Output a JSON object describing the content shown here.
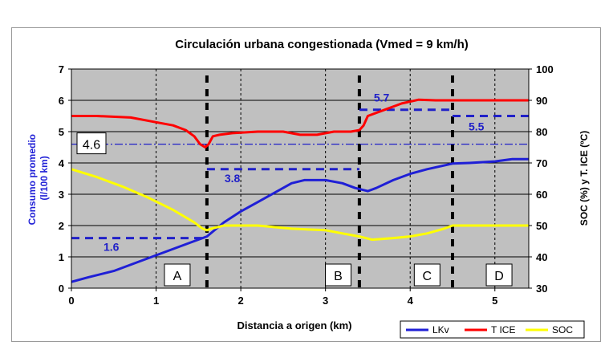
{
  "chart_data": {
    "type": "line",
    "title": "Circulación urbana congestionada (Vmed = 9 km/h)",
    "xlabel": "Distancia a origen (km)",
    "ylabel_lines": [
      "Consumo promedio",
      "(l/100 km)"
    ],
    "y2label": "SOC (%) y T. ICE (ºC)",
    "xlim": [
      0,
      5.4
    ],
    "ylim": [
      0,
      7
    ],
    "y2lim": [
      30,
      100
    ],
    "xticks": [
      0,
      1,
      2,
      3,
      4,
      5
    ],
    "yticks": [
      0,
      1,
      2,
      3,
      4,
      5,
      6,
      7
    ],
    "y2ticks": [
      30,
      40,
      50,
      60,
      70,
      80,
      90,
      100
    ],
    "grid": true,
    "legend_position": "bottom-right",
    "series": [
      {
        "name": "LKv",
        "axis": "left",
        "color": "#1f1fd6",
        "x": [
          0,
          0.2,
          0.5,
          0.8,
          1.1,
          1.4,
          1.6,
          1.8,
          2.0,
          2.2,
          2.4,
          2.6,
          2.75,
          3.0,
          3.2,
          3.35,
          3.5,
          3.6,
          3.8,
          4.0,
          4.2,
          4.5,
          4.7,
          5.0,
          5.2,
          5.4
        ],
        "y": [
          0.2,
          0.35,
          0.55,
          0.85,
          1.15,
          1.45,
          1.65,
          2.1,
          2.45,
          2.75,
          3.05,
          3.35,
          3.45,
          3.45,
          3.35,
          3.2,
          3.1,
          3.2,
          3.45,
          3.65,
          3.8,
          3.98,
          4.0,
          4.05,
          4.12,
          4.12
        ]
      },
      {
        "name": "T ICE",
        "axis": "right",
        "color": "#ff0000",
        "x": [
          0,
          0.3,
          0.7,
          1.0,
          1.2,
          1.35,
          1.45,
          1.52,
          1.58,
          1.62,
          1.67,
          1.75,
          1.9,
          2.2,
          2.5,
          2.7,
          2.9,
          3.1,
          3.3,
          3.4,
          3.45,
          3.5,
          3.7,
          3.9,
          4.1,
          4.3,
          4.6,
          5.0,
          5.4
        ],
        "y": [
          85,
          85,
          84.5,
          83,
          82,
          80.5,
          78.5,
          76,
          75,
          76,
          78.5,
          79,
          79.5,
          80,
          80,
          79,
          79,
          80,
          80,
          80.5,
          82,
          85,
          87,
          89,
          90.2,
          90,
          90,
          90,
          90
        ]
      },
      {
        "name": "SOC",
        "axis": "right",
        "color": "#ffff00",
        "x": [
          0,
          0.3,
          0.6,
          0.9,
          1.2,
          1.45,
          1.55,
          1.6,
          1.65,
          1.8,
          2.2,
          2.6,
          3.0,
          3.2,
          3.4,
          3.55,
          3.8,
          4.0,
          4.2,
          4.4,
          4.5,
          4.7,
          5.0,
          5.4
        ],
        "y": [
          68,
          65.5,
          62.5,
          59,
          55,
          51,
          49,
          48.5,
          49,
          50,
          50,
          49,
          48.5,
          47.5,
          46.5,
          45.5,
          46,
          46.5,
          47.5,
          49,
          50,
          50,
          50,
          50
        ]
      }
    ],
    "dashed_segments": [
      {
        "x": [
          0,
          1.6
        ],
        "y": 1.6,
        "label": "1.6"
      },
      {
        "x": [
          1.6,
          3.4
        ],
        "y": 3.8,
        "label": "3.8"
      },
      {
        "x": [
          3.4,
          4.5
        ],
        "y": 5.7,
        "label": "5.7"
      },
      {
        "x": [
          4.5,
          5.4
        ],
        "y": 5.5,
        "label": "5.5"
      }
    ],
    "average_line": {
      "y": 4.6,
      "label": "4.6"
    },
    "phase_boundaries": [
      1.6,
      3.4,
      4.5
    ],
    "phases": [
      {
        "label": "A",
        "x": 1.25
      },
      {
        "label": "B",
        "x": 3.15
      },
      {
        "label": "C",
        "x": 4.2
      },
      {
        "label": "D",
        "x": 5.05
      }
    ]
  }
}
